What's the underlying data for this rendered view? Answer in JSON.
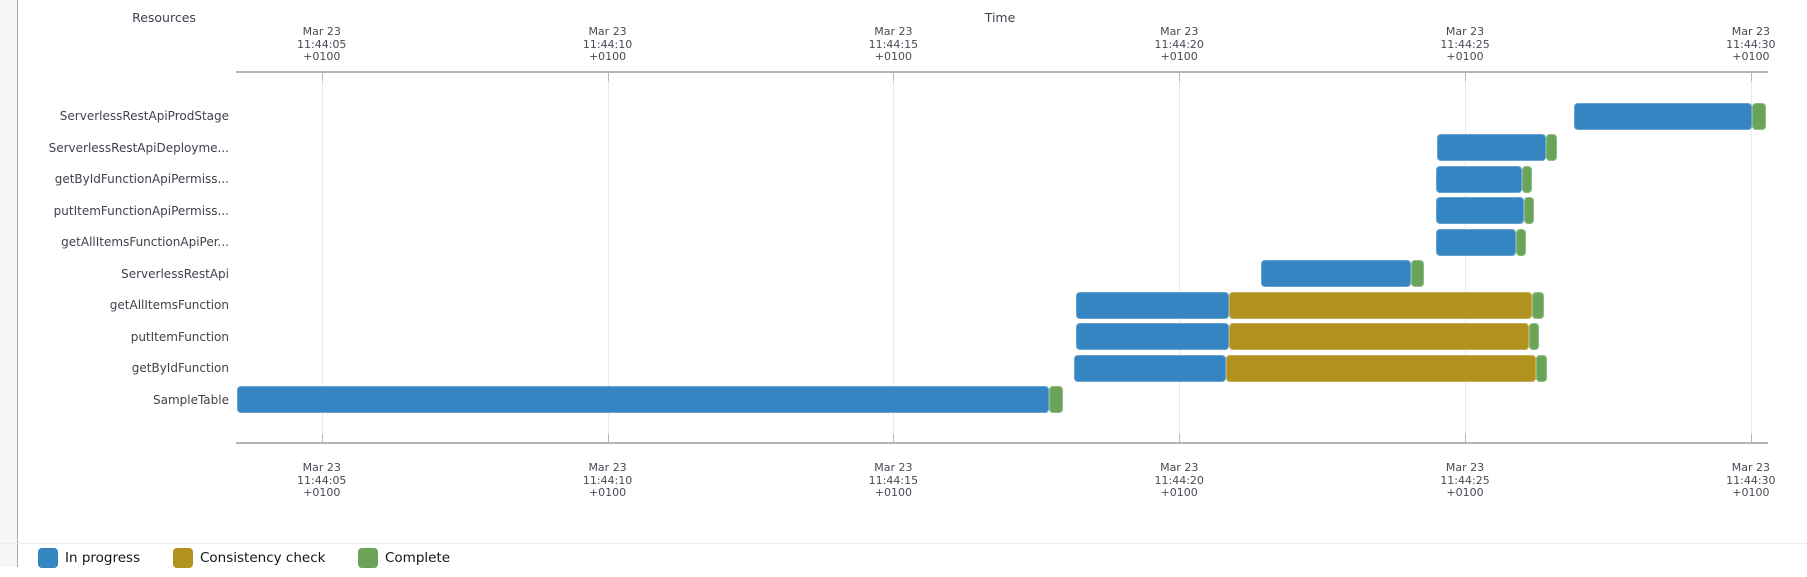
{
  "chart_data": {
    "type": "gantt",
    "resources_axis_title": "Resources",
    "time_axis_title": "Time",
    "x_range_seconds": [
      3.5,
      30.3
    ],
    "ticks": [
      {
        "t": 5,
        "lines": [
          "Mar 23",
          "11:44:05",
          "+0100"
        ]
      },
      {
        "t": 10,
        "lines": [
          "Mar 23",
          "11:44:10",
          "+0100"
        ]
      },
      {
        "t": 15,
        "lines": [
          "Mar 23",
          "11:44:15",
          "+0100"
        ]
      },
      {
        "t": 20,
        "lines": [
          "Mar 23",
          "11:44:20",
          "+0100"
        ]
      },
      {
        "t": 25,
        "lines": [
          "Mar 23",
          "11:44:25",
          "+0100"
        ]
      },
      {
        "t": 30,
        "lines": [
          "Mar 23",
          "11:44:30",
          "+0100"
        ]
      }
    ],
    "statuses": {
      "in_progress": {
        "label": "In progress",
        "color": "#3485C2"
      },
      "consistency_check": {
        "label": "Consistency check",
        "color": "#B2921E"
      },
      "complete": {
        "label": "Complete",
        "color": "#6AA459"
      }
    },
    "legend_order": [
      "in_progress",
      "consistency_check",
      "complete"
    ],
    "resources": [
      {
        "name": "ServerlessRestApiProdStage",
        "segments": [
          {
            "status": "in_progress",
            "start": 26.9,
            "end": 30.02
          },
          {
            "status": "complete",
            "start": 30.02,
            "end": 30.26
          }
        ]
      },
      {
        "name": "ServerlessRestApiDeployme...",
        "segments": [
          {
            "status": "in_progress",
            "start": 24.51,
            "end": 26.42
          },
          {
            "status": "complete",
            "start": 26.42,
            "end": 26.61
          }
        ]
      },
      {
        "name": "getByIdFunctionApiPermiss...",
        "segments": [
          {
            "status": "in_progress",
            "start": 24.49,
            "end": 26.0
          },
          {
            "status": "complete",
            "start": 26.0,
            "end": 26.17
          }
        ]
      },
      {
        "name": "putItemFunctionApiPermiss...",
        "segments": [
          {
            "status": "in_progress",
            "start": 24.49,
            "end": 26.03
          },
          {
            "status": "complete",
            "start": 26.03,
            "end": 26.21
          }
        ]
      },
      {
        "name": "getAllItemsFunctionApiPer...",
        "segments": [
          {
            "status": "in_progress",
            "start": 24.49,
            "end": 25.89
          },
          {
            "status": "complete",
            "start": 25.89,
            "end": 26.07
          }
        ]
      },
      {
        "name": "ServerlessRestApi",
        "segments": [
          {
            "status": "in_progress",
            "start": 21.43,
            "end": 24.06
          },
          {
            "status": "complete",
            "start": 24.06,
            "end": 24.28
          }
        ]
      },
      {
        "name": "getAllItemsFunction",
        "segments": [
          {
            "status": "in_progress",
            "start": 18.2,
            "end": 20.87
          },
          {
            "status": "consistency_check",
            "start": 20.87,
            "end": 26.17
          },
          {
            "status": "complete",
            "start": 26.17,
            "end": 26.38
          }
        ]
      },
      {
        "name": "putItemFunction",
        "segments": [
          {
            "status": "in_progress",
            "start": 18.2,
            "end": 20.87
          },
          {
            "status": "consistency_check",
            "start": 20.87,
            "end": 26.12
          },
          {
            "status": "complete",
            "start": 26.12,
            "end": 26.29
          }
        ]
      },
      {
        "name": "getByIdFunction",
        "segments": [
          {
            "status": "in_progress",
            "start": 18.16,
            "end": 20.82
          },
          {
            "status": "consistency_check",
            "start": 20.82,
            "end": 26.24
          },
          {
            "status": "complete",
            "start": 26.24,
            "end": 26.43
          }
        ]
      },
      {
        "name": "SampleTable",
        "segments": [
          {
            "status": "in_progress",
            "start": 3.51,
            "end": 17.73
          },
          {
            "status": "complete",
            "start": 17.73,
            "end": 17.96
          }
        ]
      }
    ]
  }
}
